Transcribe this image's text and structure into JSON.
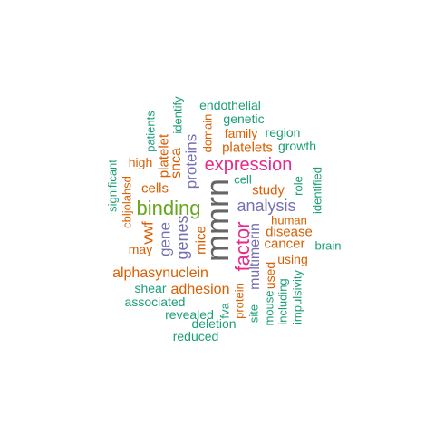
{
  "colors": {
    "teal": "#1b9e77",
    "orange": "#d95f02",
    "purple": "#7570b3",
    "magenta": "#e7298a",
    "green": "#66a61e",
    "gray": "#666666"
  },
  "words": [
    {
      "text": "endothelial",
      "color": "teal"
    },
    {
      "text": "genetic",
      "color": "teal"
    },
    {
      "text": "family",
      "color": "orange"
    },
    {
      "text": "region",
      "color": "teal"
    },
    {
      "text": "platelets",
      "color": "orange"
    },
    {
      "text": "growth",
      "color": "teal"
    },
    {
      "text": "expression",
      "color": "magenta"
    },
    {
      "text": "high",
      "color": "orange"
    },
    {
      "text": "cell",
      "color": "teal"
    },
    {
      "text": "cells",
      "color": "orange"
    },
    {
      "text": "study",
      "color": "orange"
    },
    {
      "text": "binding",
      "color": "green"
    },
    {
      "text": "analysis",
      "color": "purple"
    },
    {
      "text": "human",
      "color": "orange"
    },
    {
      "text": "disease",
      "color": "orange"
    },
    {
      "text": "cancer",
      "color": "orange"
    },
    {
      "text": "brain",
      "color": "teal"
    },
    {
      "text": "may",
      "color": "orange"
    },
    {
      "text": "using",
      "color": "orange"
    },
    {
      "text": "alphasynuclein",
      "color": "orange"
    },
    {
      "text": "shear",
      "color": "teal"
    },
    {
      "text": "adhesion",
      "color": "orange"
    },
    {
      "text": "associated",
      "color": "teal"
    },
    {
      "text": "revealed",
      "color": "teal"
    },
    {
      "text": "deletion",
      "color": "teal"
    },
    {
      "text": "reduced",
      "color": "teal"
    },
    {
      "text": "mmrn",
      "color": "gray"
    },
    {
      "text": "factor",
      "color": "magenta"
    },
    {
      "text": "multimerin",
      "color": "purple"
    },
    {
      "text": "mice",
      "color": "orange"
    },
    {
      "text": "genes",
      "color": "purple"
    },
    {
      "text": "gene",
      "color": "purple"
    },
    {
      "text": "vwf",
      "color": "orange"
    },
    {
      "text": "proteins",
      "color": "purple"
    },
    {
      "text": "snca",
      "color": "orange"
    },
    {
      "text": "platelet",
      "color": "orange"
    },
    {
      "text": "patients",
      "color": "teal"
    },
    {
      "text": "identify",
      "color": "teal"
    },
    {
      "text": "domain",
      "color": "orange"
    },
    {
      "text": "significant",
      "color": "teal"
    },
    {
      "text": "cbljolahsd",
      "color": "orange"
    },
    {
      "text": "role",
      "color": "teal"
    },
    {
      "text": "identified",
      "color": "teal"
    },
    {
      "text": "protein",
      "color": "orange"
    },
    {
      "text": "fva",
      "color": "teal"
    },
    {
      "text": "site",
      "color": "teal"
    },
    {
      "text": "mouse",
      "color": "teal"
    },
    {
      "text": "used",
      "color": "orange"
    },
    {
      "text": "including",
      "color": "teal"
    },
    {
      "text": "impulsivity",
      "color": "teal"
    }
  ]
}
